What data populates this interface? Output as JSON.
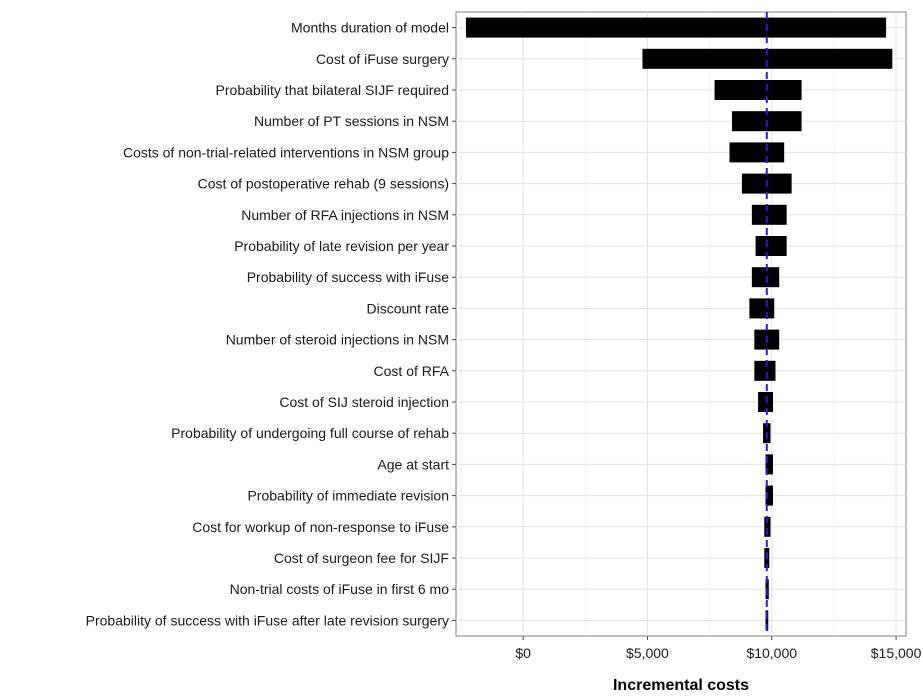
{
  "chart_data": {
    "type": "bar",
    "orientation": "horizontal",
    "style": "tornado",
    "xlabel": "Incremental costs",
    "ylabel": "",
    "title": "",
    "xlim": [
      -2700,
      15400
    ],
    "x_ticks": [
      0,
      5000,
      10000,
      15000
    ],
    "x_tick_labels": [
      "$0",
      "$5,000",
      "$10,000",
      "$15,000"
    ],
    "grid": true,
    "legend": "none",
    "reference_line": {
      "value": 9800,
      "style": "dashed",
      "color": "#1f1fd6"
    },
    "bar_color": "#000000",
    "categories": [
      "Months duration of model",
      "Cost of iFuse surgery",
      "Probability that bilateral SIJF required",
      "Number of PT sessions in NSM",
      "Costs of non-trial-related interventions in NSM group",
      "Cost of postoperative rehab (9 sessions)",
      "Number of RFA injections in NSM",
      "Probability of late revision per year",
      "Probability of success with iFuse",
      "Discount rate",
      "Number of steroid injections in NSM",
      "Cost of RFA",
      "Cost of SIJ steroid injection",
      "Probability of undergoing full course of rehab",
      "Age at start",
      "Probability of immediate revision",
      "Cost for workup of non-response to iFuse",
      "Cost of surgeon fee for SIJF",
      "Non-trial costs of iFuse in first 6 mo",
      "Probability of success with iFuse after late revision surgery"
    ],
    "ranges": [
      [
        -2300,
        14600
      ],
      [
        4800,
        14850
      ],
      [
        7700,
        11200
      ],
      [
        8400,
        11200
      ],
      [
        8300,
        10500
      ],
      [
        8800,
        10800
      ],
      [
        9200,
        10600
      ],
      [
        9350,
        10600
      ],
      [
        9200,
        10300
      ],
      [
        9100,
        10100
      ],
      [
        9300,
        10300
      ],
      [
        9300,
        10150
      ],
      [
        9450,
        10050
      ],
      [
        9650,
        9950
      ],
      [
        9750,
        10050
      ],
      [
        9750,
        10050
      ],
      [
        9700,
        9950
      ],
      [
        9700,
        9900
      ],
      [
        9750,
        9880
      ],
      [
        9750,
        9860
      ]
    ]
  }
}
